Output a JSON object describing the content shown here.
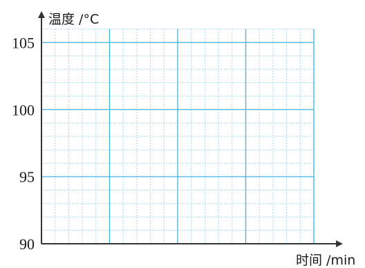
{
  "chart_data": {
    "type": "line",
    "title": "",
    "ylabel": "温度 /°C",
    "xlabel": "时间 /min",
    "ylim": [
      90,
      106
    ],
    "y_ticks": [
      "90",
      "95",
      "100",
      "105"
    ],
    "x_major_divisions": 4,
    "grid": true,
    "series": [],
    "colors": {
      "grid_major": "#3cb4e6",
      "grid_minor": "#9fd8f0",
      "axis": "#333333",
      "text": "#1a1a1a"
    }
  }
}
